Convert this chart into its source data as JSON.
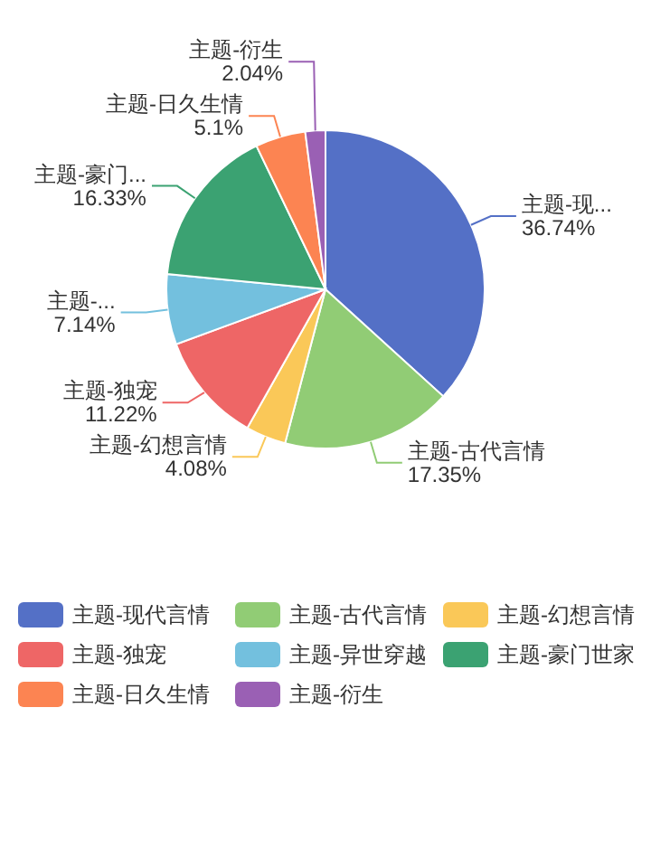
{
  "chart_data": {
    "type": "pie",
    "categories": [
      "主题-现代言情",
      "主题-古代言情",
      "主题-幻想言情",
      "主题-独宠",
      "主题-异世穿越",
      "主题-豪门世家",
      "主题-日久生情",
      "主题-衍生"
    ],
    "values": [
      36.74,
      17.35,
      4.08,
      11.22,
      7.14,
      16.33,
      5.1,
      2.04
    ],
    "colors": [
      "#5470c6",
      "#91cc75",
      "#fac858",
      "#ee6666",
      "#73c0de",
      "#3ba272",
      "#fc8452",
      "#9a60b4"
    ],
    "value_labels": [
      "主题-现...\n36.74%",
      "主题-古代言情\n17.35%",
      "主题-幻想言情\n4.08%",
      "主题-独宠\n11.22%",
      "主题-...\n7.14%",
      "主题-豪门...\n16.33%",
      "主题-日久生情\n5.1%",
      "主题-衍生\n2.04%"
    ],
    "legend": "bottom"
  }
}
